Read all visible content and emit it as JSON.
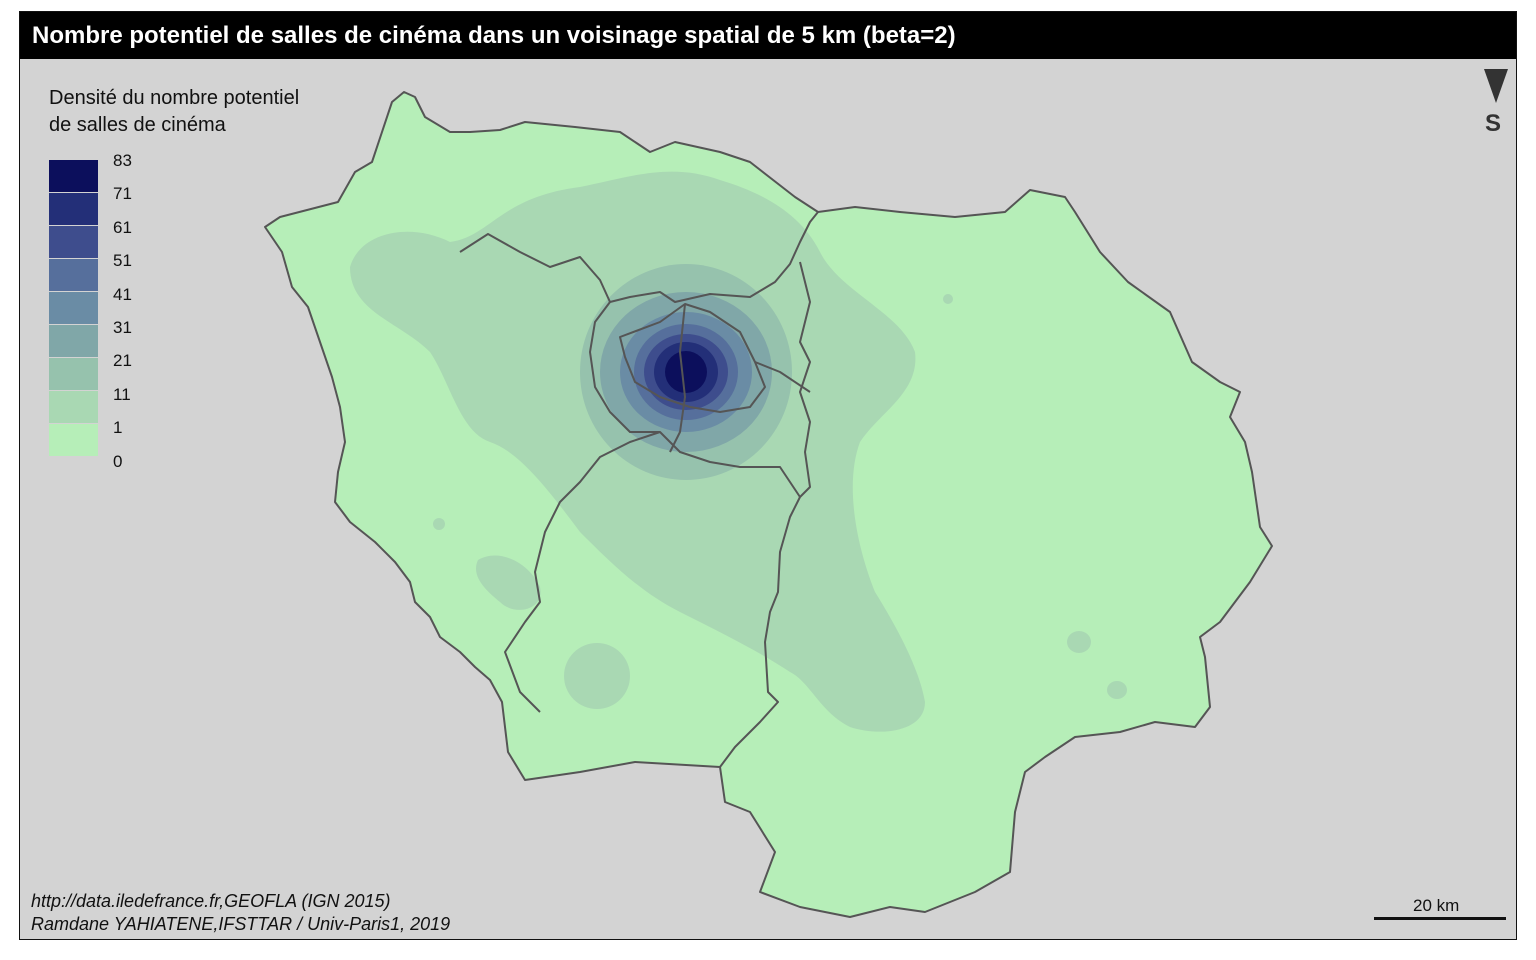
{
  "title": "Nombre potentiel de salles de cinéma dans un voisinage spatial de 5 km (beta=2)",
  "legend": {
    "title_line1": "Densité du nombre potentiel",
    "title_line2": "de salles de cinéma",
    "breaks": [
      "83",
      "71",
      "61",
      "51",
      "41",
      "31",
      "21",
      "11",
      "1",
      "0"
    ],
    "colors": [
      "#0c0f5c",
      "#232f78",
      "#3e4d8d",
      "#566f9c",
      "#6a8ca5",
      "#80a7a8",
      "#96c2ad",
      "#a9d8b3",
      "#b6eeb8"
    ]
  },
  "map": {
    "region": "Île-de-France",
    "colors": {
      "background": "#d3d3d3",
      "low": "#b6eeb8",
      "medium": "#a9d8b3",
      "boundary": "#555555"
    }
  },
  "north_arrow": {
    "letter": "S",
    "icon": "north-arrow-icon"
  },
  "scale": {
    "label": "20 km"
  },
  "source": {
    "line1": "http://data.iledefrance.fr,GEOFLA (IGN 2015)",
    "line2": "Ramdane YAHIATENE,IFSTTAR / Univ-Paris1, 2019"
  }
}
